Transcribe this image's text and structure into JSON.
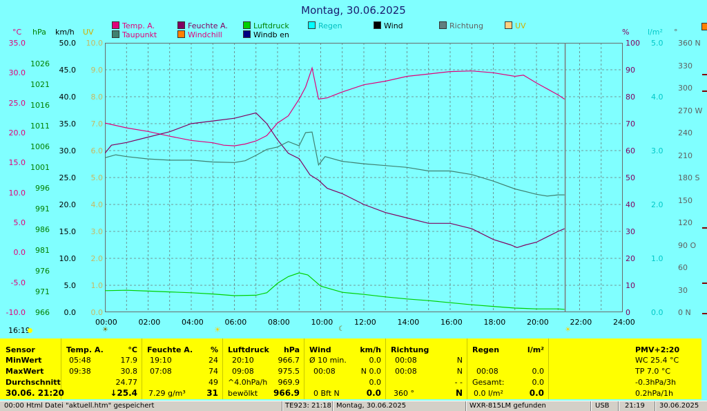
{
  "title": "Montag, 30.06.2025",
  "legend": [
    {
      "label": "Temp. A.",
      "color": "#e0007a",
      "text_color": "#e0007a"
    },
    {
      "label": "Feuchte A.",
      "color": "#800060",
      "text_color": "#800060"
    },
    {
      "label": "Luftdruck",
      "color": "#00d000",
      "text_color": "#008000"
    },
    {
      "label": "Regen",
      "color": "#00ffff",
      "text_color": "#00d0d0"
    },
    {
      "label": "Wind",
      "color": "#000000",
      "text_color": "#000000"
    },
    {
      "label": "Richtung",
      "color": "#408080",
      "text_color": "#606060"
    },
    {
      "label": "UV",
      "color": "#ffd080",
      "text_color": "#c0a000"
    },
    {
      "label": "Taupunkt",
      "color": "#408070",
      "text_color": "#e0007a"
    },
    {
      "label": "Windchill",
      "color": "#ff8000",
      "text_color": "#e0007a"
    },
    {
      "label": "Windb en",
      "color": "#000080",
      "text_color": "#000000"
    }
  ],
  "axis_units": {
    "temp": "°C",
    "hpa": "hPa",
    "kmh": "km/h",
    "uv": "UV",
    "pct": "%",
    "rain": "l/m²",
    "deg": "°"
  },
  "axis_ticks": {
    "temp": [
      "35.0",
      "30.0",
      "25.0",
      "20.0",
      "15.0",
      "10.0",
      "5.0",
      "0.0",
      "-5.0",
      "-10.0"
    ],
    "hpa": [
      "1026",
      "1021",
      "1016",
      "1011",
      "1006",
      "1001",
      "996",
      "991",
      "986",
      "981",
      "976",
      "971",
      "966"
    ],
    "kmh": [
      "50.0",
      "45.0",
      "40.0",
      "35.0",
      "30.0",
      "25.0",
      "20.0",
      "15.0",
      "10.0",
      "5.0",
      "0.0"
    ],
    "uv": [
      "10.0",
      "9.0",
      "8.0",
      "7.0",
      "6.0",
      "5.0",
      "4.0",
      "3.0",
      "2.0",
      "1.0",
      "0.0"
    ],
    "pct": [
      "100",
      "90",
      "80",
      "70",
      "60",
      "50",
      "40",
      "30",
      "20",
      "10",
      "0"
    ],
    "rain": [
      "5.0",
      "4.0",
      "3.0",
      "2.0",
      "1.0",
      "0.0"
    ],
    "deg": [
      "360 N",
      "330",
      "300",
      "270 W",
      "240",
      "210",
      "180 S",
      "150",
      "120",
      "90 O",
      "60",
      "30",
      "0 N"
    ],
    "x": [
      "00:00",
      "02:00",
      "04:00",
      "06:00",
      "08:00",
      "10:00",
      "12:00",
      "14:00",
      "16:00",
      "18:00",
      "20:00",
      "22:00",
      "24:00"
    ]
  },
  "time_label": "16:19",
  "chart_data": {
    "type": "line",
    "title": "Montag, 30.06.2025",
    "x_unit": "hours",
    "xlim": [
      0,
      24
    ],
    "series": [
      {
        "name": "Temp. A.",
        "axis": "°C",
        "ylim": [
          -10,
          35
        ],
        "color": "#e0007a",
        "x": [
          0,
          1,
          2,
          3,
          4,
          5,
          5.5,
          6,
          6.5,
          7,
          7.5,
          8,
          8.5,
          9,
          9.3,
          9.6,
          9.9,
          10.3,
          11,
          12,
          13,
          14,
          15,
          16,
          17,
          18,
          19,
          19.4,
          20,
          20.5,
          21,
          21.3
        ],
        "y": [
          21.6,
          20.8,
          20.2,
          19.4,
          18.7,
          18.3,
          17.9,
          17.8,
          18.1,
          18.6,
          19.5,
          21.6,
          22.8,
          25.6,
          27.6,
          30.8,
          25.6,
          25.8,
          26.8,
          28.0,
          28.6,
          29.4,
          29.8,
          30.2,
          30.3,
          30.0,
          29.4,
          29.6,
          28.3,
          27.3,
          26.3,
          25.6
        ]
      },
      {
        "name": "Feuchte A.",
        "axis": "%",
        "ylim": [
          0,
          100
        ],
        "color": "#800060",
        "x": [
          0,
          0.3,
          1,
          2,
          3,
          4,
          5,
          6,
          6.5,
          7,
          7.5,
          8,
          8.5,
          9,
          9.5,
          9.9,
          10.3,
          11,
          12,
          13,
          14,
          15,
          16,
          17,
          18,
          18.8,
          19.1,
          19.5,
          20,
          20.5,
          21,
          21.3
        ],
        "y": [
          59,
          62,
          63,
          65,
          67,
          70,
          71,
          72,
          73,
          74,
          70,
          64,
          59,
          57,
          51,
          49,
          46,
          44,
          40,
          37,
          35,
          33,
          33,
          31,
          27,
          25,
          24,
          25,
          26,
          28,
          30,
          31
        ]
      },
      {
        "name": "Luftdruck",
        "axis": "hPa",
        "ylim": [
          966,
          1031
        ],
        "color": "#00d000",
        "x": [
          0,
          1,
          2,
          3,
          4,
          5,
          6,
          7,
          7.5,
          8,
          8.5,
          9,
          9.4,
          10,
          11,
          12,
          13,
          14,
          15,
          16,
          17,
          18,
          19,
          20,
          21,
          21.3
        ],
        "y": [
          971.2,
          971.3,
          971.1,
          970.9,
          970.7,
          970.4,
          970.0,
          970.1,
          970.7,
          973.0,
          974.6,
          975.5,
          975.0,
          972.3,
          970.8,
          970.3,
          969.7,
          969.2,
          968.8,
          968.3,
          967.8,
          967.4,
          967.0,
          966.8,
          966.8,
          966.7
        ]
      },
      {
        "name": "Taupunkt",
        "axis": "°C",
        "ylim": [
          -10,
          35
        ],
        "color": "#408070",
        "x": [
          0,
          0.5,
          1,
          2,
          3,
          4,
          5,
          6,
          6.5,
          7,
          7.5,
          8,
          8.5,
          9,
          9.3,
          9.6,
          9.9,
          10.2,
          11,
          12,
          13,
          14,
          15,
          16,
          17,
          18,
          19,
          20,
          20.5,
          21,
          21.3
        ],
        "y": [
          15.8,
          16.3,
          16.0,
          15.6,
          15.4,
          15.4,
          15.1,
          15.0,
          15.3,
          16.2,
          17.2,
          17.6,
          18.5,
          17.8,
          20.0,
          20.1,
          14.6,
          16.0,
          15.2,
          14.8,
          14.5,
          14.2,
          13.6,
          13.6,
          13.0,
          11.9,
          10.6,
          9.7,
          9.4,
          9.6,
          9.6
        ]
      }
    ]
  },
  "table": {
    "sensor": {
      "head": "Sensor",
      "min": "MinWert",
      "max": "MaxWert",
      "avg": "Durchschnitt",
      "now": "30.06. 21:20"
    },
    "temp": {
      "head": "Temp. A.",
      "unit": "°C",
      "min_t": "05:48",
      "min_v": "17.9",
      "max_t": "09:38",
      "max_v": "30.8",
      "avg": "24.77",
      "now": "↓25.4"
    },
    "hum": {
      "head": "Feuchte A.",
      "unit": "%",
      "min_t": "19:10",
      "min_v": "24",
      "max_t": "07:08",
      "max_v": "74",
      "avg": "49",
      "dew": "7.29 g/m³",
      "now": "31"
    },
    "press": {
      "head": "Luftdruck",
      "unit": "hPa",
      "min_t": "20:10",
      "min_v": "966.7",
      "max_t": "09:08",
      "max_v": "975.5",
      "trend": "^4.0hPa/h",
      "avg": "969.9",
      "cloud": "bewölkt",
      "now": "966.9"
    },
    "wind": {
      "head": "Wind",
      "unit": "km/h",
      "min_t": "Ø 10 min.",
      "min_v": "0.0",
      "max_t": "00:08",
      "max_v": "N 0.0",
      "avg": "0.0",
      "bft": "0 Bft N",
      "now": "0.0"
    },
    "dir": {
      "head": "Richtung",
      "min_t": "00:08",
      "min_v": "N",
      "max_t": "00:08",
      "max_v": "N",
      "avg": "- -",
      "now_v": "360 °",
      "now": "N"
    },
    "rain": {
      "head": "Regen",
      "unit": "l/m²",
      "max_t": "00:08",
      "max_v": "0.0",
      "tot_l": "Gesamt:",
      "tot_v": "0.0",
      "now_l": "0.0 l/m²",
      "now": "0.0"
    },
    "pmv": {
      "head": "PMV+2:20",
      "l1": "WC 25.4 °C",
      "l2": "TP 7.0 °C",
      "l3": "-0.3hPa/3h",
      "l4": "0.2hPa/1h"
    }
  },
  "status": {
    "s1": "00:00  Html Datei \"aktuell.htm\" gespeichert",
    "s2": "TE923: 21:18",
    "s3": "Montag, 30.06.2025",
    "s4": "WXR-815LM gefunden",
    "s5": "USB",
    "s6": "21:19",
    "s7": "30.06.2025"
  }
}
